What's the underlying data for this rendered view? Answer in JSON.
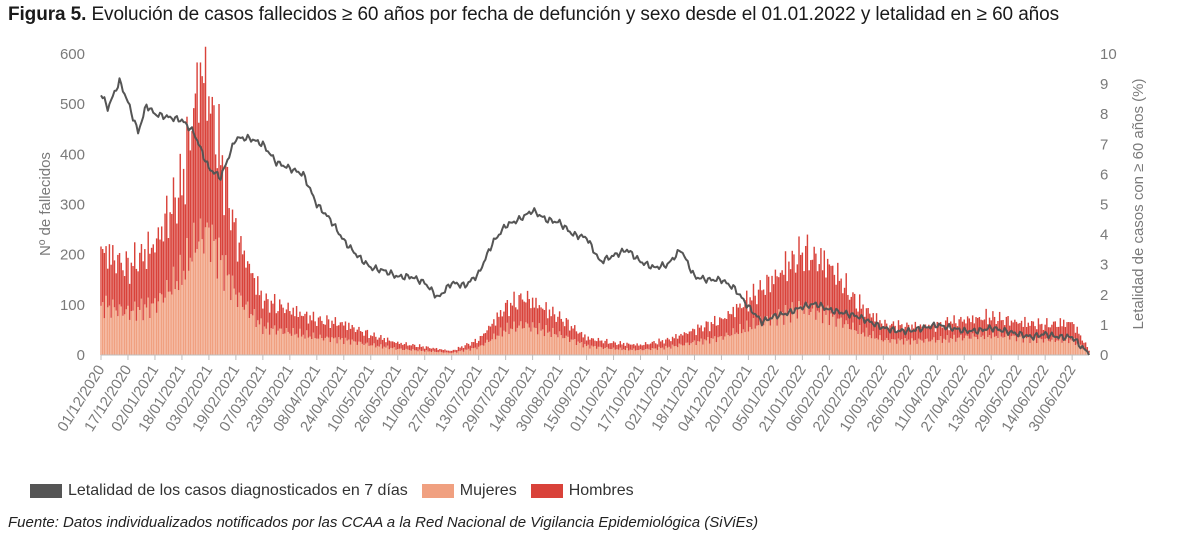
{
  "title": {
    "prefix": "Figura 5.",
    "text": "Evolución de casos fallecidos ≥ 60 años por fecha de defunción y sexo desde el 01.01.2022 y letalidad en ≥ 60 años"
  },
  "source": "Fuente: Datos individualizados notificados por las CCAA a la Red Nacional de Vigilancia Epidemiológica (SiViEs)",
  "legend": [
    {
      "label": "Letalidad de los casos diagnosticados en 7 días",
      "color": "#555555",
      "kind": "line"
    },
    {
      "label": "Mujeres",
      "color": "#f0a080",
      "kind": "box"
    },
    {
      "label": "Hombres",
      "color": "#d9423a",
      "kind": "box"
    }
  ],
  "chart_data": {
    "type": "bar",
    "stacked": true,
    "ylabel": "Nº de fallecidos",
    "y2label": "Letalidad de casos con ≥ 60 años (%)",
    "ylim": [
      0,
      600
    ],
    "y2lim": [
      0,
      10
    ],
    "yticks": [
      0,
      100,
      200,
      300,
      400,
      500,
      600
    ],
    "y2ticks": [
      0,
      1,
      2,
      3,
      4,
      5,
      6,
      7,
      8,
      9,
      10
    ],
    "x_start": "01/12/2020",
    "x_end": "10/07/2022",
    "x_tick_labels": [
      "01/12/2020",
      "17/12/2020",
      "02/01/2021",
      "18/01/2021",
      "03/02/2021",
      "19/02/2021",
      "07/03/2021",
      "23/03/2021",
      "08/04/2021",
      "24/04/2021",
      "10/05/2021",
      "26/05/2021",
      "11/06/2021",
      "27/06/2021",
      "13/07/2021",
      "29/07/2021",
      "14/08/2021",
      "30/08/2021",
      "15/09/2021",
      "01/10/2021",
      "17/10/2021",
      "02/11/2021",
      "18/11/2021",
      "04/12/2021",
      "20/12/2021",
      "05/01/2022",
      "21/01/2022",
      "06/02/2022",
      "22/02/2022",
      "10/03/2022",
      "26/03/2022",
      "11/04/2022",
      "27/04/2022",
      "13/05/2022",
      "29/05/2022",
      "14/06/2022",
      "30/06/2022"
    ],
    "series": [
      {
        "name": "Mujeres",
        "color": "#f0a080",
        "points": [
          [
            "01/12/2020",
            100
          ],
          [
            "17/12/2020",
            85
          ],
          [
            "02/01/2021",
            100
          ],
          [
            "18/01/2021",
            160
          ],
          [
            "27/01/2021",
            230
          ],
          [
            "03/02/2021",
            245
          ],
          [
            "19/02/2021",
            120
          ],
          [
            "07/03/2021",
            55
          ],
          [
            "23/03/2021",
            45
          ],
          [
            "08/04/2021",
            35
          ],
          [
            "24/04/2021",
            30
          ],
          [
            "10/05/2021",
            20
          ],
          [
            "26/05/2021",
            12
          ],
          [
            "11/06/2021",
            8
          ],
          [
            "27/06/2021",
            4
          ],
          [
            "13/07/2021",
            15
          ],
          [
            "29/07/2021",
            50
          ],
          [
            "09/08/2021",
            60
          ],
          [
            "30/08/2021",
            40
          ],
          [
            "15/09/2021",
            18
          ],
          [
            "01/10/2021",
            12
          ],
          [
            "17/10/2021",
            10
          ],
          [
            "02/11/2021",
            15
          ],
          [
            "18/11/2021",
            25
          ],
          [
            "04/12/2021",
            35
          ],
          [
            "20/12/2021",
            55
          ],
          [
            "05/01/2022",
            75
          ],
          [
            "21/01/2022",
            95
          ],
          [
            "06/02/2022",
            80
          ],
          [
            "22/02/2022",
            50
          ],
          [
            "10/03/2022",
            30
          ],
          [
            "26/03/2022",
            28
          ],
          [
            "11/04/2022",
            30
          ],
          [
            "27/04/2022",
            35
          ],
          [
            "13/05/2022",
            40
          ],
          [
            "29/05/2022",
            35
          ],
          [
            "14/06/2022",
            30
          ],
          [
            "30/06/2022",
            30
          ],
          [
            "10/07/2022",
            5
          ]
        ]
      },
      {
        "name": "Hombres",
        "color": "#d9423a",
        "points": [
          [
            "01/12/2020",
            110
          ],
          [
            "17/12/2020",
            90
          ],
          [
            "02/01/2021",
            120
          ],
          [
            "18/01/2021",
            180
          ],
          [
            "27/01/2021",
            300
          ],
          [
            "30/01/2021",
            330
          ],
          [
            "03/02/2021",
            270
          ],
          [
            "19/02/2021",
            120
          ],
          [
            "07/03/2021",
            55
          ],
          [
            "23/03/2021",
            45
          ],
          [
            "08/04/2021",
            35
          ],
          [
            "24/04/2021",
            32
          ],
          [
            "10/05/2021",
            20
          ],
          [
            "26/05/2021",
            12
          ],
          [
            "11/06/2021",
            8
          ],
          [
            "27/06/2021",
            4
          ],
          [
            "13/07/2021",
            15
          ],
          [
            "29/07/2021",
            45
          ],
          [
            "09/08/2021",
            55
          ],
          [
            "30/08/2021",
            35
          ],
          [
            "15/09/2021",
            16
          ],
          [
            "01/10/2021",
            12
          ],
          [
            "17/10/2021",
            10
          ],
          [
            "02/11/2021",
            15
          ],
          [
            "18/11/2021",
            25
          ],
          [
            "04/12/2021",
            35
          ],
          [
            "20/12/2021",
            55
          ],
          [
            "05/01/2022",
            80
          ],
          [
            "21/01/2022",
            110
          ],
          [
            "06/02/2022",
            100
          ],
          [
            "22/02/2022",
            55
          ],
          [
            "10/03/2022",
            32
          ],
          [
            "26/03/2022",
            28
          ],
          [
            "11/04/2022",
            30
          ],
          [
            "27/04/2022",
            35
          ],
          [
            "13/05/2022",
            35
          ],
          [
            "29/05/2022",
            30
          ],
          [
            "14/06/2022",
            30
          ],
          [
            "30/06/2022",
            35
          ],
          [
            "10/07/2022",
            5
          ]
        ]
      },
      {
        "name": "Letalidad de los casos diagnosticados en 7 días",
        "axis": "right",
        "color": "#555555",
        "points": [
          [
            "01/12/2020",
            8.7
          ],
          [
            "05/12/2020",
            8.2
          ],
          [
            "12/12/2020",
            9.1
          ],
          [
            "17/12/2020",
            8.4
          ],
          [
            "23/12/2020",
            7.4
          ],
          [
            "28/12/2020",
            8.3
          ],
          [
            "02/01/2021",
            8.0
          ],
          [
            "10/01/2021",
            7.9
          ],
          [
            "18/01/2021",
            7.8
          ],
          [
            "25/01/2021",
            7.4
          ],
          [
            "03/02/2021",
            6.2
          ],
          [
            "10/02/2021",
            5.9
          ],
          [
            "19/02/2021",
            7.2
          ],
          [
            "27/02/2021",
            7.2
          ],
          [
            "07/03/2021",
            7.0
          ],
          [
            "15/03/2021",
            6.4
          ],
          [
            "23/03/2021",
            6.2
          ],
          [
            "31/03/2021",
            6.0
          ],
          [
            "08/04/2021",
            5.0
          ],
          [
            "16/04/2021",
            4.5
          ],
          [
            "24/04/2021",
            3.8
          ],
          [
            "02/05/2021",
            3.3
          ],
          [
            "10/05/2021",
            2.9
          ],
          [
            "18/05/2021",
            2.8
          ],
          [
            "26/05/2021",
            2.6
          ],
          [
            "03/06/2021",
            2.6
          ],
          [
            "11/06/2021",
            2.4
          ],
          [
            "19/06/2021",
            1.9
          ],
          [
            "27/06/2021",
            2.4
          ],
          [
            "05/07/2021",
            2.3
          ],
          [
            "13/07/2021",
            2.7
          ],
          [
            "21/07/2021",
            3.7
          ],
          [
            "29/07/2021",
            4.3
          ],
          [
            "06/08/2021",
            4.5
          ],
          [
            "14/08/2021",
            4.8
          ],
          [
            "22/08/2021",
            4.5
          ],
          [
            "30/08/2021",
            4.4
          ],
          [
            "07/09/2021",
            4.0
          ],
          [
            "15/09/2021",
            3.9
          ],
          [
            "23/09/2021",
            3.1
          ],
          [
            "01/10/2021",
            3.3
          ],
          [
            "09/10/2021",
            3.5
          ],
          [
            "17/10/2021",
            3.1
          ],
          [
            "25/10/2021",
            2.9
          ],
          [
            "02/11/2021",
            3.0
          ],
          [
            "10/11/2021",
            3.5
          ],
          [
            "18/11/2021",
            2.6
          ],
          [
            "26/11/2021",
            2.5
          ],
          [
            "04/12/2021",
            2.5
          ],
          [
            "12/12/2021",
            2.2
          ],
          [
            "20/12/2021",
            1.6
          ],
          [
            "28/12/2021",
            1.1
          ],
          [
            "05/01/2022",
            1.3
          ],
          [
            "13/01/2022",
            1.4
          ],
          [
            "21/01/2022",
            1.6
          ],
          [
            "29/01/2022",
            1.7
          ],
          [
            "06/02/2022",
            1.5
          ],
          [
            "14/02/2022",
            1.4
          ],
          [
            "22/02/2022",
            1.3
          ],
          [
            "02/03/2022",
            1.1
          ],
          [
            "10/03/2022",
            0.9
          ],
          [
            "18/03/2022",
            0.8
          ],
          [
            "26/03/2022",
            0.8
          ],
          [
            "03/04/2022",
            0.9
          ],
          [
            "11/04/2022",
            1.0
          ],
          [
            "19/04/2022",
            0.9
          ],
          [
            "27/04/2022",
            0.8
          ],
          [
            "05/05/2022",
            0.8
          ],
          [
            "13/05/2022",
            0.9
          ],
          [
            "21/05/2022",
            0.8
          ],
          [
            "29/05/2022",
            0.7
          ],
          [
            "06/06/2022",
            0.6
          ],
          [
            "14/06/2022",
            0.7
          ],
          [
            "22/06/2022",
            0.6
          ],
          [
            "30/06/2022",
            0.6
          ],
          [
            "05/07/2022",
            0.3
          ],
          [
            "10/07/2022",
            0.05
          ]
        ]
      }
    ],
    "grid": false,
    "legend_position": "bottom-left"
  }
}
